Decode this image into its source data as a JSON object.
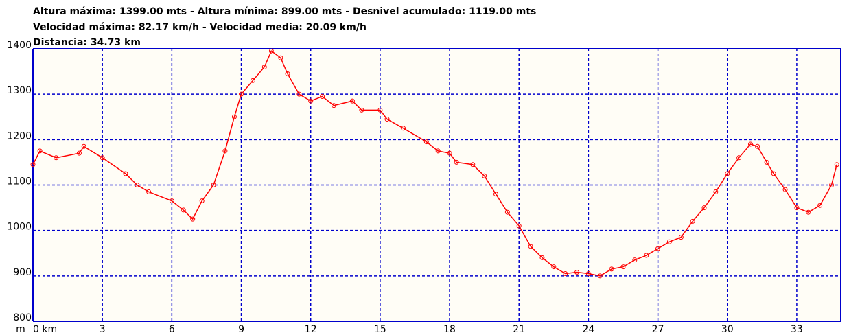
{
  "chart_data": {
    "type": "line",
    "title_lines": [
      "Altura máxima: 1399.00 mts - Altura mínima: 899.00 mts - Desnivel acumulado: 1119.00 mts",
      "Velocidad máxima: 82.17 km/h - Velocidad media: 20.09 km/h",
      "Distancia: 34.73 km"
    ],
    "y_unit": "m",
    "x": [
      0,
      0.3,
      1,
      2,
      2.2,
      3,
      4,
      4.5,
      5,
      6,
      6.5,
      6.9,
      7.3,
      7.8,
      8.3,
      8.7,
      9,
      9.5,
      10,
      10.3,
      10.7,
      11,
      11.5,
      12,
      12.5,
      13,
      13.8,
      14.2,
      15,
      15.3,
      16,
      17,
      17.5,
      18,
      18.3,
      19,
      19.5,
      20,
      20.5,
      21,
      21.5,
      22,
      22.5,
      23,
      23.5,
      24,
      24.5,
      25,
      25.5,
      26,
      26.5,
      27,
      27.5,
      28,
      28.5,
      29,
      29.5,
      30,
      30.5,
      31,
      31.3,
      31.7,
      32,
      32.5,
      33,
      33.5,
      34,
      34.5,
      34.73
    ],
    "series": [
      {
        "name": "Altura",
        "color": "#ff0000",
        "values": [
          1145,
          1175,
          1160,
          1170,
          1185,
          1160,
          1125,
          1100,
          1085,
          1065,
          1045,
          1025,
          1065,
          1100,
          1175,
          1250,
          1300,
          1330,
          1360,
          1395,
          1380,
          1345,
          1300,
          1285,
          1295,
          1275,
          1285,
          1265,
          1265,
          1245,
          1225,
          1195,
          1175,
          1170,
          1150,
          1145,
          1120,
          1080,
          1040,
          1010,
          965,
          940,
          920,
          905,
          908,
          905,
          900,
          915,
          920,
          935,
          945,
          960,
          975,
          985,
          1020,
          1050,
          1085,
          1125,
          1160,
          1190,
          1185,
          1150,
          1125,
          1090,
          1050,
          1040,
          1055,
          1100,
          1145
        ]
      }
    ],
    "xlim": [
      0,
      34.9
    ],
    "xticks": [
      {
        "value": 0,
        "label": "0 km"
      },
      3,
      6,
      9,
      12,
      15,
      18,
      21,
      24,
      27,
      30,
      33
    ],
    "ylim": [
      800,
      1400
    ],
    "yticks": [
      800,
      900,
      1000,
      1100,
      1200,
      1300,
      1400
    ],
    "grid": true,
    "grid_color": "#0000cc"
  }
}
